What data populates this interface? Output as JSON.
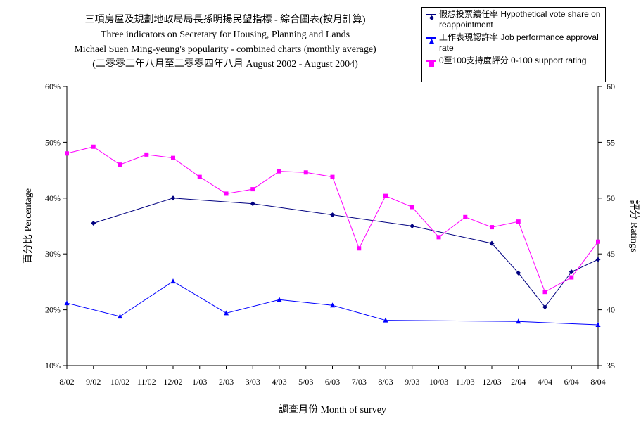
{
  "title": {
    "line1": "三項房屋及規劃地政局局長孫明揚民望指標 - 綜合圖表(按月計算)",
    "line2": "Three indicators on Secretary for Housing, Planning and Lands",
    "line3": "Michael Suen Ming-yeung's popularity - combined charts (monthly average)",
    "line4": "(二零零二年八月至二零零四年八月 August 2002 - August 2004)"
  },
  "legend": [
    {
      "label": "假想投票續任率 Hypothetical vote share on reappointment",
      "color": "#000080",
      "marker": "diamond"
    },
    {
      "label": "工作表現認許率 Job performance approval rate",
      "color": "#0000ff",
      "marker": "triangle"
    },
    {
      "label": "0至100支持度評分 0-100 support rating",
      "color": "#ff00ff",
      "marker": "square"
    }
  ],
  "chart_data": {
    "type": "line",
    "title": "三項房屋及規劃地政局局長孫明揚民望指標 - 綜合圖表(按月計算)",
    "xlabel": "調查月份 Month of survey",
    "ylabel": "百分比 Percentage",
    "ylabel_right": "評分 Ratings",
    "categories": [
      "8/02",
      "9/02",
      "10/02",
      "11/02",
      "12/02",
      "1/03",
      "2/03",
      "3/03",
      "4/03",
      "5/03",
      "6/03",
      "7/03",
      "8/03",
      "9/03",
      "10/03",
      "11/03",
      "12/03",
      "2/04",
      "4/04",
      "6/04",
      "8/04"
    ],
    "ylim": [
      10,
      60
    ],
    "ylim_right": [
      35,
      60
    ],
    "yticks": [
      "10%",
      "20%",
      "30%",
      "40%",
      "50%",
      "60%"
    ],
    "yticks_right": [
      "35",
      "40",
      "45",
      "50",
      "55",
      "60"
    ],
    "series": [
      {
        "name": "假想投票續任率 Hypothetical vote share on reappointment",
        "axis": "left",
        "color": "#000080",
        "marker": "diamond",
        "values": [
          null,
          35.5,
          null,
          null,
          40.0,
          null,
          null,
          39.0,
          null,
          null,
          37.0,
          null,
          null,
          35.0,
          null,
          null,
          31.9,
          26.6,
          20.5,
          26.8,
          29.0
        ]
      },
      {
        "name": "工作表現認許率 Job performance approval rate",
        "axis": "left",
        "color": "#0000ff",
        "marker": "triangle",
        "values": [
          21.2,
          null,
          18.8,
          null,
          25.1,
          null,
          19.4,
          null,
          21.8,
          null,
          20.8,
          null,
          18.1,
          null,
          null,
          null,
          null,
          17.9,
          null,
          null,
          17.3
        ]
      },
      {
        "name": "0至100支持度評分 0-100 support rating",
        "axis": "right",
        "color": "#ff00ff",
        "marker": "square",
        "values": [
          54.0,
          54.6,
          53.0,
          53.9,
          53.6,
          51.9,
          50.4,
          50.8,
          52.4,
          52.3,
          51.9,
          45.5,
          50.2,
          49.2,
          46.5,
          48.3,
          47.4,
          47.9,
          41.6,
          42.9,
          46.1
        ]
      }
    ],
    "grid": false,
    "legend_position": "top-right"
  }
}
